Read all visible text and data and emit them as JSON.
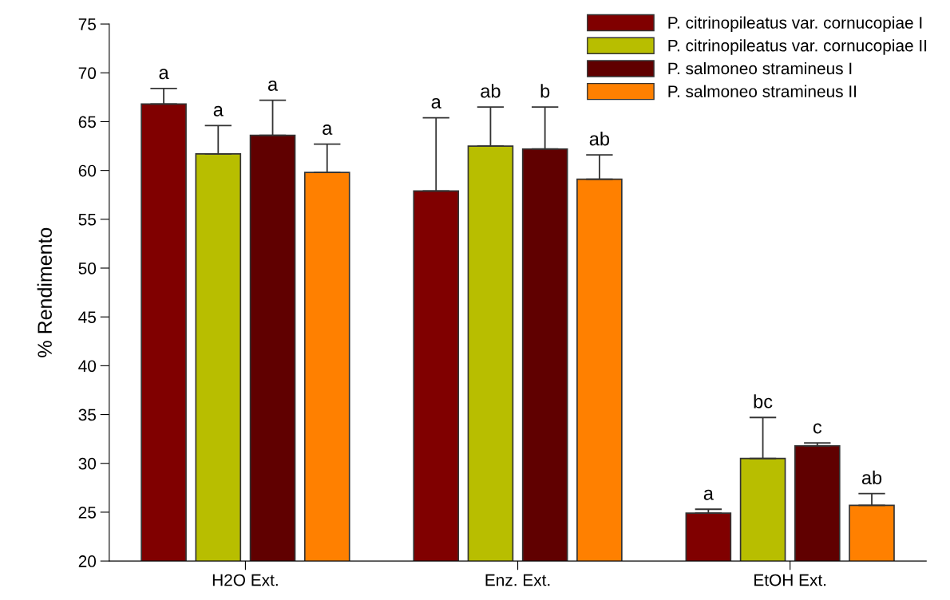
{
  "chart_data": {
    "type": "bar",
    "ylabel": "% Rendimento",
    "categories": [
      "H2O Ext.",
      "Enz. Ext.",
      "EtOH Ext."
    ],
    "series": [
      {
        "name": "P. citrinopileatus var. cornucopiae I",
        "color": "#800000",
        "values": [
          66.8,
          57.9,
          24.9
        ],
        "errors": [
          [
            66.8,
            68.4
          ],
          [
            57.9,
            65.4
          ],
          [
            24.9,
            25.3
          ]
        ]
      },
      {
        "name": "P. citrinopileatus var. cornucopiae II",
        "color": "#b8be00",
        "values": [
          61.7,
          62.5,
          30.5
        ],
        "errors": [
          [
            61.7,
            64.6
          ],
          [
            62.5,
            66.5
          ],
          [
            30.5,
            34.7
          ]
        ]
      },
      {
        "name": "P. salmoneo stramineus I",
        "color": "#600000",
        "values": [
          63.6,
          62.2,
          31.8
        ],
        "errors": [
          [
            63.6,
            67.2
          ],
          [
            62.2,
            66.5
          ],
          [
            31.8,
            32.1
          ]
        ]
      },
      {
        "name": "P. salmoneo stramineus II",
        "color": "#ff8000",
        "values": [
          59.8,
          59.1,
          25.7
        ],
        "errors": [
          [
            59.8,
            62.7
          ],
          [
            59.1,
            61.6
          ],
          [
            25.7,
            26.9
          ]
        ]
      }
    ],
    "ylim": [
      20,
      75
    ],
    "yticks": [
      20,
      25,
      30,
      35,
      40,
      45,
      50,
      55,
      60,
      65,
      70,
      75
    ],
    "grid": false,
    "legend": "top right",
    "annotations": [
      "a",
      "a",
      "a",
      "a",
      "a",
      "ab",
      "b",
      "ab",
      "a",
      "bc",
      "c",
      "ab"
    ]
  }
}
